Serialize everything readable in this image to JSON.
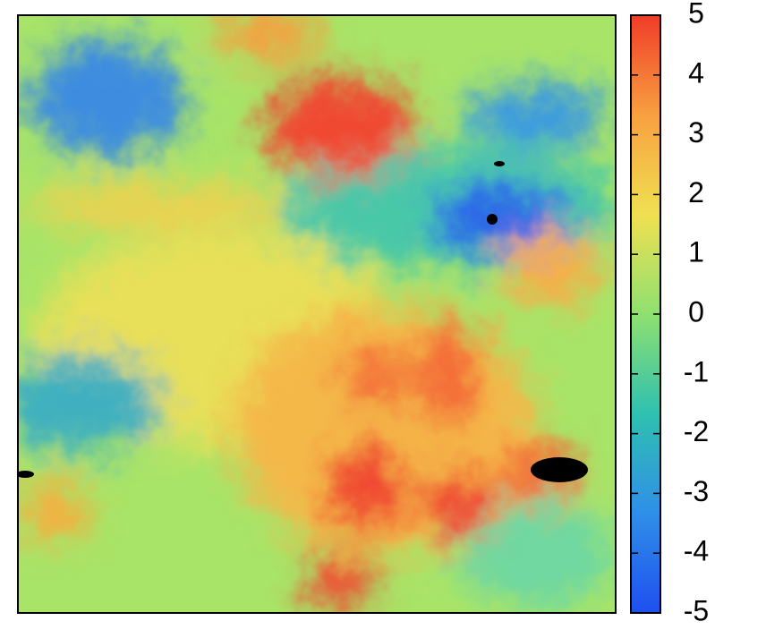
{
  "chart_data": {
    "type": "heatmap",
    "colorbar": {
      "clim": [
        -5,
        5
      ],
      "ticks": [
        -5,
        -4,
        -3,
        -2,
        -1,
        0,
        1,
        2,
        3,
        4,
        5
      ],
      "colormap": [
        "#1f4ff0",
        "#2f8fe8",
        "#2fc0b0",
        "#8fe070",
        "#f0e050",
        "#f8a040",
        "#f03c28"
      ]
    }
  }
}
